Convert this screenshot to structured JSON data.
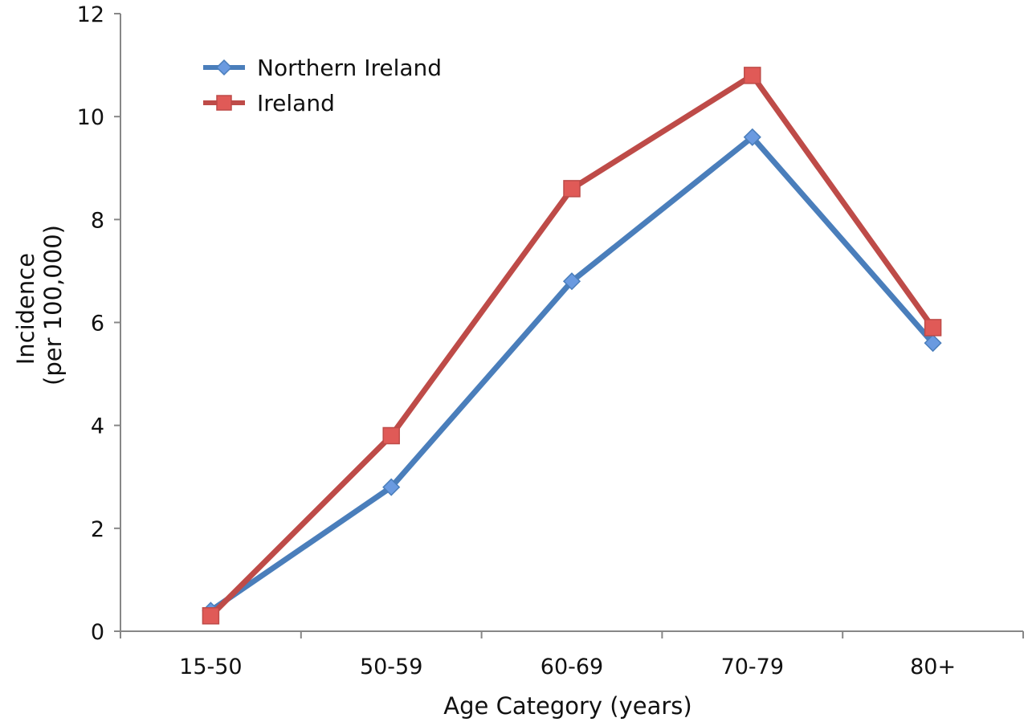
{
  "chart_data": {
    "type": "line",
    "title": "",
    "xlabel": "Age Category (years)",
    "ylabel": [
      "Incidence",
      "(per 100,000)"
    ],
    "categories": [
      "15-50",
      "50-59",
      "60-69",
      "70-79",
      "80+"
    ],
    "ylim": [
      0,
      12
    ],
    "yticks": [
      "0",
      "2",
      "4",
      "6",
      "8",
      "10",
      "12"
    ],
    "grid": false,
    "legend_position": "top-left",
    "series": [
      {
        "name": "Northern Ireland",
        "marker": "diamond",
        "color": "#4a7ebb",
        "marker_color": "#6a9ae0",
        "values": [
          0.4,
          2.8,
          6.8,
          9.6,
          5.6
        ]
      },
      {
        "name": "Ireland",
        "marker": "square",
        "color": "#be4b48",
        "marker_color": "#e05a57",
        "values": [
          0.3,
          3.8,
          8.6,
          10.8,
          5.9
        ]
      }
    ]
  }
}
